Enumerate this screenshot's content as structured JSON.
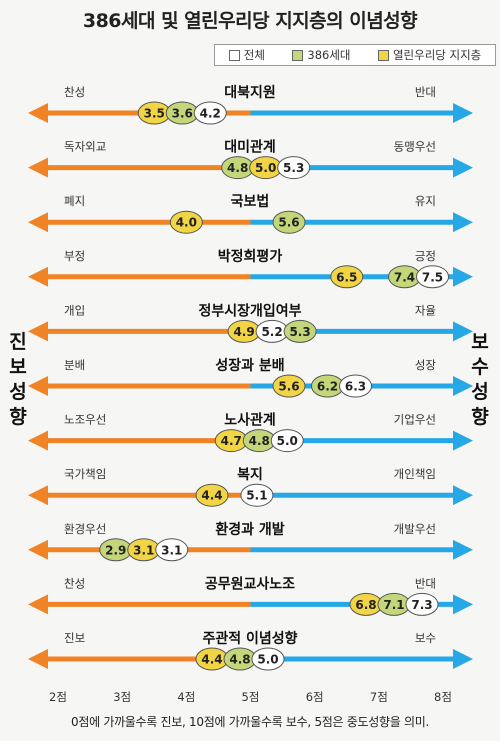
{
  "title": "386세대 및 열린우리당 지지층의 이념성향",
  "side_labels": {
    "left": "진보성향",
    "right": "보수성향"
  },
  "note": "0점에 가까울수록 진보, 10점에 가까울수록 보수, 5점은 중도성향을 의미.",
  "colors": {
    "progressive": "#f08326",
    "conservative": "#27a8e6",
    "overall": "#ffffff",
    "gen386": "#c3d77a",
    "uri": "#f2d544"
  },
  "chart_data": {
    "type": "dot",
    "x_ticks": [
      "2점",
      "3점",
      "4점",
      "5점",
      "6점",
      "7점",
      "8점"
    ],
    "x_tick_values": [
      2,
      3,
      4,
      5,
      6,
      7,
      8
    ],
    "xlim": [
      2,
      8
    ],
    "series": [
      {
        "name": "전체",
        "key": "overall"
      },
      {
        "name": "386세대",
        "key": "gen386"
      },
      {
        "name": "열린우리당 지지층",
        "key": "uri"
      }
    ],
    "rows": [
      {
        "issue": "대북지원",
        "left": "찬성",
        "right": "반대",
        "overall": 4.2,
        "gen386": 3.6,
        "uri": 3.5
      },
      {
        "issue": "대미관계",
        "left": "독자외교",
        "right": "동맹우선",
        "overall": 5.3,
        "gen386": 4.8,
        "uri": 5.0
      },
      {
        "issue": "국보법",
        "left": "폐지",
        "right": "유지",
        "gen386": 5.6,
        "uri": 4.0
      },
      {
        "issue": "박정희평가",
        "left": "부정",
        "right": "긍정",
        "overall": 7.5,
        "gen386": 7.4,
        "uri": 6.5
      },
      {
        "issue": "정부시장개입여부",
        "left": "개입",
        "right": "자율",
        "overall": 5.2,
        "gen386": 5.3,
        "uri": 4.9
      },
      {
        "issue": "성장과 분배",
        "left": "분배",
        "right": "성장",
        "overall": 6.3,
        "gen386": 6.2,
        "uri": 5.6
      },
      {
        "issue": "노사관계",
        "left": "노조우선",
        "right": "기업우선",
        "overall": 5.0,
        "gen386": 4.8,
        "uri": 4.7
      },
      {
        "issue": "복지",
        "left": "국가책임",
        "right": "개인책임",
        "overall": 5.1,
        "uri": 4.4
      },
      {
        "issue": "환경과 개발",
        "left": "환경우선",
        "right": "개발우선",
        "overall": 3.1,
        "gen386": 2.9,
        "uri": 3.1
      },
      {
        "issue": "공무원교사노조",
        "left": "찬성",
        "right": "반대",
        "overall": 7.3,
        "gen386": 7.1,
        "uri": 6.8
      },
      {
        "issue": "주관적 이념성향",
        "left": "진보",
        "right": "보수",
        "overall": 5.0,
        "gen386": 4.8,
        "uri": 4.4
      }
    ]
  }
}
